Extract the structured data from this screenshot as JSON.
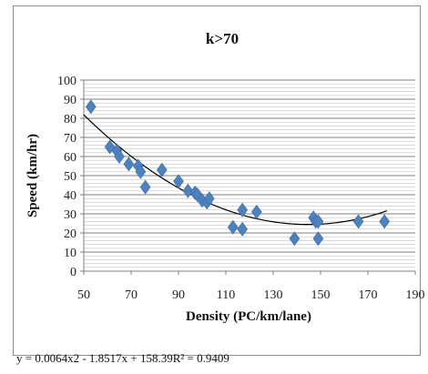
{
  "chart_data": {
    "type": "scatter",
    "title": "k>70",
    "xlabel": "Density (PC/km/lane)",
    "ylabel": "Speed (km/hr)",
    "xlim": [
      50,
      190
    ],
    "ylim": [
      0,
      100
    ],
    "x_ticks": [
      "50",
      "70",
      "90",
      "110",
      "130",
      "150",
      "170",
      "190"
    ],
    "y_ticks": [
      "0",
      "10",
      "20",
      "30",
      "40",
      "50",
      "60",
      "70",
      "80",
      "90",
      "100"
    ],
    "grid": true,
    "marker_color": "#4f81bd",
    "trendline_color": "#000000",
    "trendline": {
      "type": "polynomial",
      "a": 0.0064,
      "b": -1.8517,
      "c": 158.39,
      "x_range": [
        50,
        178
      ]
    },
    "equation": "y = 0.0064x2 - 1.8517x + 158.39R² = 0.9409",
    "series": [
      {
        "x": [
          53,
          61,
          64,
          65,
          69,
          73,
          74,
          76,
          83,
          90,
          94,
          97,
          98,
          100,
          102,
          103,
          113,
          117,
          117,
          123,
          139,
          147,
          148,
          149,
          149,
          166,
          177
        ],
        "y": [
          86,
          65,
          63,
          60,
          56,
          55,
          52,
          44,
          53,
          47,
          42,
          41,
          40,
          37,
          36,
          38,
          23,
          32,
          22,
          31,
          17,
          28,
          26,
          26,
          17,
          26,
          26
        ]
      }
    ]
  }
}
